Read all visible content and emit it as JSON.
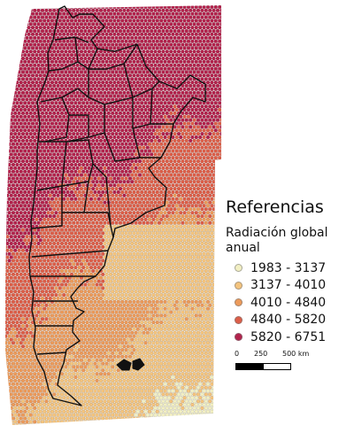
{
  "legend": {
    "title": "Referencias",
    "subtitle": "Radiación global anual",
    "classes": [
      {
        "label": "1983 - 3137",
        "color": "#f2efc3"
      },
      {
        "label": "3137 - 4010",
        "color": "#f4c47e"
      },
      {
        "label": "4010 - 4840",
        "color": "#ec9a5a"
      },
      {
        "label": "4840 - 5820",
        "color": "#dd5e48"
      },
      {
        "label": "5820 - 6751",
        "color": "#b3224c"
      }
    ]
  },
  "scalebar": {
    "tick_0": "0",
    "tick_1": "250",
    "tick_2": "500 km"
  }
}
